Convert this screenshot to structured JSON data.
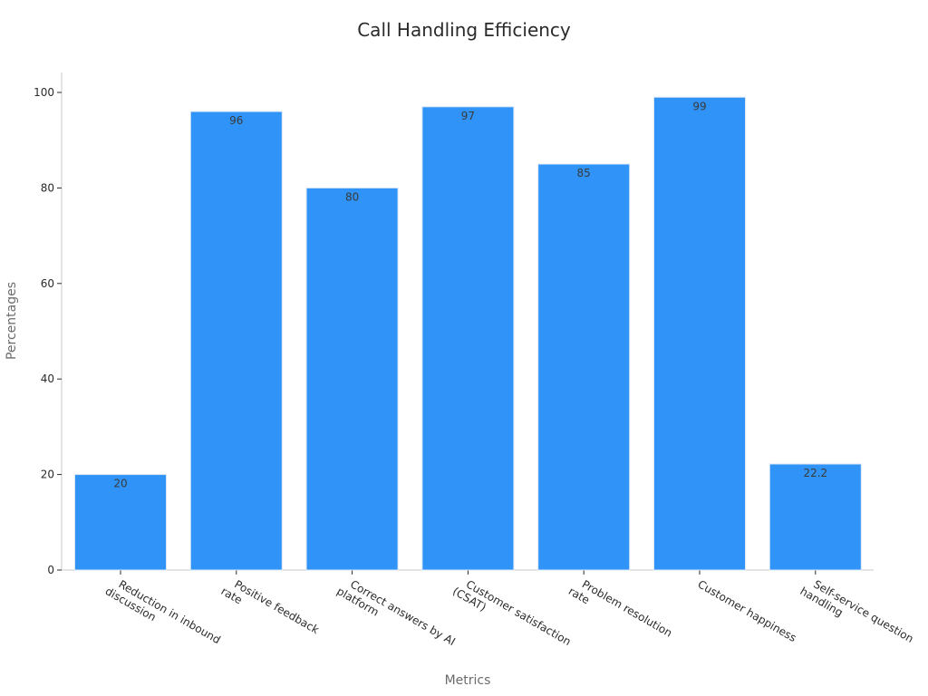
{
  "chart_data": {
    "type": "bar",
    "title": "Call Handling Efficiency",
    "xlabel": "Metrics",
    "ylabel": "Percentages",
    "ylim": [
      0,
      104
    ],
    "yticks": [
      "0",
      "20",
      "40",
      "60",
      "80",
      "100"
    ],
    "categories": [
      [
        "Reduction in inbound",
        "discussion"
      ],
      [
        "Positive feedback",
        "rate"
      ],
      [
        "Correct answers by AI",
        "platform"
      ],
      [
        "Customer satisfaction",
        "(CSAT)"
      ],
      [
        "Problem resolution",
        "rate"
      ],
      [
        "Customer happiness"
      ],
      [
        "Self-service question",
        "handling"
      ]
    ],
    "values": [
      20,
      96,
      80,
      97,
      85,
      99,
      22.2
    ],
    "data_labels": [
      "20",
      "96",
      "80",
      "97",
      "85",
      "99",
      "22.2"
    ],
    "bar_color": "#2f93f7",
    "grid": false,
    "legend": "none"
  }
}
